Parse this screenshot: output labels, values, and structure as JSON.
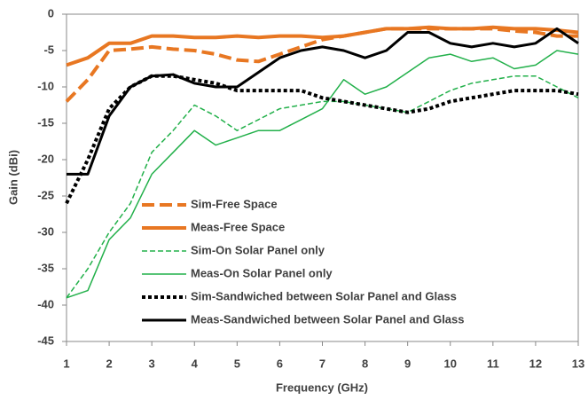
{
  "chart_data": {
    "type": "line",
    "xlabel": "Frequency (GHz)",
    "ylabel": "Gain (dBi)",
    "x": [
      1,
      1.5,
      2,
      2.5,
      3,
      3.5,
      4,
      4.5,
      5,
      5.5,
      6,
      6.5,
      7,
      7.5,
      8,
      8.5,
      9,
      9.5,
      10,
      10.5,
      11,
      11.5,
      12,
      12.5,
      13
    ],
    "xlim": [
      1,
      13
    ],
    "xticks": [
      1,
      2,
      3,
      4,
      5,
      6,
      7,
      8,
      9,
      10,
      11,
      12,
      13
    ],
    "ylim": [
      -45,
      0
    ],
    "yticks": [
      0,
      -5,
      -10,
      -15,
      -20,
      -25,
      -30,
      -35,
      -40,
      -45
    ],
    "grid": false,
    "legend": "lower-left",
    "series": [
      {
        "name": "Sim-Free Space",
        "color": "#e87722",
        "style": "dashed",
        "width": 4,
        "values": [
          -12,
          -9,
          -5,
          -4.8,
          -4.5,
          -4.8,
          -5,
          -5.5,
          -6.3,
          -6.5,
          -5.5,
          -4.5,
          -3.5,
          -3,
          -2.5,
          -2,
          -2,
          -2,
          -2,
          -2,
          -2,
          -2.3,
          -2.5,
          -3,
          -3
        ]
      },
      {
        "name": "Meas-Free Space",
        "color": "#e87722",
        "style": "solid",
        "width": 4,
        "values": [
          -7,
          -6,
          -4,
          -4,
          -3,
          -3,
          -3.2,
          -3.2,
          -3,
          -3.2,
          -3,
          -3,
          -3.2,
          -3,
          -2.5,
          -2,
          -2,
          -1.8,
          -2,
          -2,
          -1.8,
          -2,
          -2,
          -2.2,
          -2.5
        ]
      },
      {
        "name": "Sim-On Solar Panel only",
        "color": "#22b04a",
        "style": "dashed",
        "width": 1.5,
        "values": [
          -39,
          -35,
          -30,
          -26,
          -19,
          -16,
          -12.5,
          -14,
          -16,
          -14.5,
          -13,
          -12.5,
          -12,
          -12,
          -12.5,
          -13,
          -13.5,
          -12,
          -10.5,
          -9.5,
          -9,
          -8.5,
          -8.5,
          -10,
          -11.5
        ]
      },
      {
        "name": "Meas-On Solar Panel only",
        "color": "#22b04a",
        "style": "solid",
        "width": 1.5,
        "values": [
          -39,
          -38,
          -31,
          -28,
          -22,
          -19,
          -16,
          -18,
          -17,
          -16,
          -16,
          -14.5,
          -13,
          -9,
          -11,
          -10,
          -8,
          -6,
          -5.5,
          -6.5,
          -6,
          -7.5,
          -7,
          -5,
          -5.5
        ]
      },
      {
        "name": "Sim-Sandwiched between Solar Panel and Glass",
        "color": "#000000",
        "style": "dotted",
        "width": 4,
        "values": [
          -26,
          -20,
          -13,
          -10,
          -8.5,
          -8.5,
          -9,
          -9.5,
          -10.5,
          -10.5,
          -10.5,
          -10.5,
          -11.5,
          -12,
          -12.5,
          -13,
          -13.5,
          -13,
          -12,
          -11.5,
          -11,
          -10.5,
          -10.5,
          -10.5,
          -11
        ]
      },
      {
        "name": "Meas-Sandwiched between Solar Panel and Glass",
        "color": "#000000",
        "style": "solid",
        "width": 3,
        "values": [
          -22,
          -22,
          -14,
          -10,
          -8.5,
          -8.3,
          -9.5,
          -10,
          -10,
          -8,
          -6,
          -5,
          -4.5,
          -5,
          -6,
          -5,
          -2.5,
          -2.5,
          -4,
          -4.5,
          -4,
          -4.5,
          -4,
          -2,
          -4
        ]
      }
    ]
  }
}
